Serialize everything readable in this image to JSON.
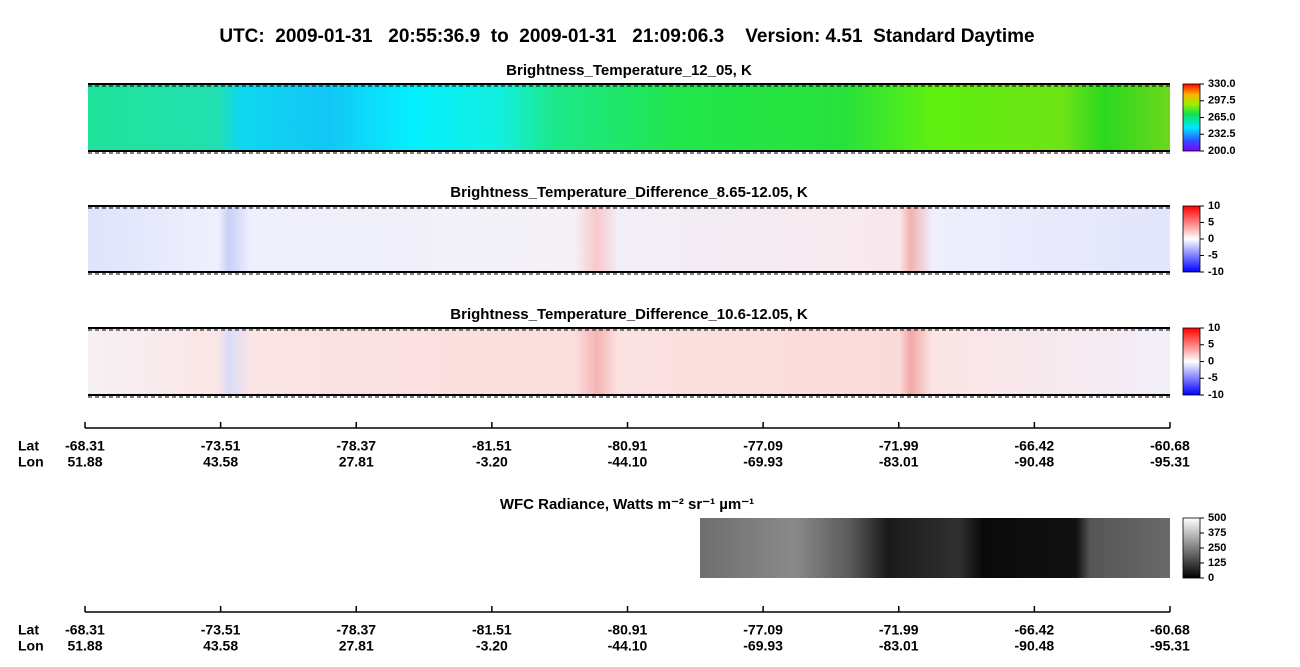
{
  "title": "UTC:  2009-01-31   20:55:36.9  to  2009-01-31   21:09:06.3    Version: 4.51  Standard Daytime",
  "chart_data": [
    {
      "type": "heatmap",
      "title": "Brightness_Temperature_12_05, K",
      "clim": [
        200,
        330
      ],
      "cticks": [
        {
          "value": 200,
          "label": "200.0"
        },
        {
          "value": 232.5,
          "label": "232.5"
        },
        {
          "value": 265,
          "label": "265.0"
        },
        {
          "value": 297.5,
          "label": "297.5"
        },
        {
          "value": 330,
          "label": "330.0"
        }
      ]
    },
    {
      "type": "heatmap",
      "title": "Brightness_Temperature_Difference_8.65-12.05, K",
      "clim": [
        -10,
        10
      ],
      "cticks": [
        -10,
        -5,
        0,
        5,
        10
      ]
    },
    {
      "type": "heatmap",
      "title": "Brightness_Temperature_Difference_10.6-12.05, K",
      "clim": [
        -10,
        10
      ],
      "cticks": [
        -10,
        -5,
        0,
        5,
        10
      ]
    },
    {
      "type": "heatmap",
      "title": "WFC Radiance, Watts m⁻² sr⁻¹ µm⁻¹",
      "clim": [
        0,
        500
      ],
      "cticks": [
        0,
        125,
        250,
        375,
        500
      ]
    }
  ],
  "axes": [
    {
      "rows": [
        "Lat",
        "Lon"
      ],
      "lat": [
        "-68.31",
        "-73.51",
        "-78.37",
        "-81.51",
        "-80.91",
        "-77.09",
        "-71.99",
        "-66.42",
        "-60.68"
      ],
      "lon": [
        "51.88",
        "43.58",
        "27.81",
        "-3.20",
        "-44.10",
        "-69.93",
        "-83.01",
        "-90.48",
        "-95.31"
      ]
    },
    {
      "rows": [
        "Lat",
        "Lon"
      ],
      "lat": [
        "-68.31",
        "-73.51",
        "-78.37",
        "-81.51",
        "-80.91",
        "-77.09",
        "-71.99",
        "-66.42",
        "-60.68"
      ],
      "lon": [
        "51.88",
        "43.58",
        "27.81",
        "-3.20",
        "-44.10",
        "-69.93",
        "-83.01",
        "-90.48",
        "-95.31"
      ]
    }
  ]
}
